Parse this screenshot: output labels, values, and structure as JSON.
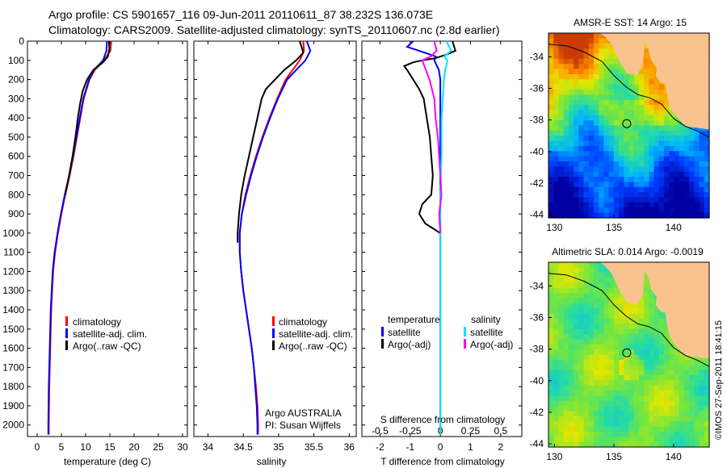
{
  "header": {
    "line1": "Argo profile: CS 5901657_116 09-Jun-2011 20110611_87 38.232S 136.073E",
    "line2": "Climatology: CARS2009. Satellite-adjusted climatology: synTS_20110607.nc (2.8d earlier)"
  },
  "colors": {
    "climatology": "#ff0000",
    "satellite": "#0000ff",
    "argo": "#000000",
    "cyan": "#00e5ff",
    "magenta": "#ff00ff",
    "land": "#f8c38f"
  },
  "chart_data": [
    {
      "type": "line",
      "xlabel": "temperature (deg C)",
      "ylabel": "",
      "xlim": [
        -2,
        31
      ],
      "ylim": [
        2060,
        0
      ],
      "x_ticks": [
        "0",
        "5",
        "10",
        "15",
        "20",
        "25",
        "30"
      ],
      "y_ticks": [
        "0",
        "100",
        "200",
        "300",
        "400",
        "500",
        "600",
        "700",
        "800",
        "900",
        "1000",
        "1100",
        "1200",
        "1300",
        "1400",
        "1500",
        "1600",
        "1700",
        "1800",
        "1900",
        "2000"
      ],
      "legend": [
        "climatology",
        "satellite-adj. clim.",
        "Argo(..raw -QC)"
      ],
      "series": [
        {
          "name": "climatology",
          "depth": [
            0,
            50,
            100,
            150,
            200,
            300,
            400,
            500,
            600,
            700,
            800,
            900,
            1000,
            1100,
            1200,
            1400,
            1600,
            1800,
            2000,
            2050
          ],
          "values": [
            15.3,
            15.1,
            13.8,
            11.9,
            10.8,
            9.6,
            8.9,
            8.2,
            7.5,
            6.7,
            5.8,
            5.0,
            4.3,
            3.7,
            3.3,
            2.9,
            2.7,
            2.5,
            2.4,
            2.4
          ]
        },
        {
          "name": "satellite-adj. clim.",
          "depth": [
            0,
            50,
            100,
            150,
            200,
            300,
            400,
            500,
            600,
            700,
            800,
            900,
            1000,
            1100,
            1200,
            1400,
            1600,
            1800,
            2000,
            2050
          ],
          "values": [
            14.4,
            14.3,
            13.6,
            11.7,
            10.7,
            9.5,
            8.8,
            8.1,
            7.4,
            6.6,
            5.7,
            4.9,
            4.2,
            3.6,
            3.2,
            2.8,
            2.6,
            2.4,
            2.3,
            2.3
          ]
        },
        {
          "name": "Argo(..raw -QC)",
          "depth": [
            0,
            40,
            80,
            110,
            150,
            200,
            260,
            320,
            400,
            500,
            600,
            700,
            800
          ],
          "values": [
            14.8,
            14.9,
            14.6,
            13.6,
            11.6,
            10.3,
            9.4,
            8.9,
            8.4,
            7.9,
            7.3,
            6.6,
            5.8
          ]
        }
      ]
    },
    {
      "type": "line",
      "xlabel": "salinity",
      "ylabel": "",
      "xlim": [
        33.8,
        36.1
      ],
      "ylim": [
        2060,
        0
      ],
      "x_ticks": [
        "34",
        "34.5",
        "35",
        "35.5",
        "36"
      ],
      "legend": [
        "climatology",
        "satellite-adj. clim.",
        "Argo(..raw -QC)"
      ],
      "annotation": [
        "Argo AUSTRALIA",
        "PI: Susan Wijffels"
      ],
      "series": [
        {
          "name": "climatology",
          "depth": [
            0,
            50,
            100,
            150,
            200,
            300,
            400,
            500,
            600,
            700,
            800,
            900,
            1000,
            1100,
            1200,
            1300,
            1400,
            1500,
            1600,
            1700,
            1800,
            1900,
            2000,
            2050
          ],
          "values": [
            35.35,
            35.36,
            35.3,
            35.2,
            35.1,
            34.98,
            34.87,
            34.77,
            34.68,
            34.6,
            34.53,
            34.48,
            34.45,
            34.45,
            34.47,
            34.5,
            34.54,
            34.58,
            34.62,
            34.65,
            34.68,
            34.7,
            34.71,
            34.71
          ]
        },
        {
          "name": "satellite-adj. clim.",
          "depth": [
            0,
            50,
            100,
            150,
            200,
            300,
            400,
            500,
            600,
            700,
            800,
            900,
            1000,
            1100,
            1200,
            1300,
            1400,
            1500,
            1600,
            1700,
            1800,
            1900,
            2000,
            2050
          ],
          "values": [
            35.4,
            35.45,
            35.38,
            35.25,
            35.12,
            34.99,
            34.88,
            34.78,
            34.69,
            34.61,
            34.54,
            34.48,
            34.45,
            34.45,
            34.47,
            34.5,
            34.54,
            34.58,
            34.62,
            34.65,
            34.67,
            34.69,
            34.7,
            34.7
          ]
        },
        {
          "name": "Argo(..raw -QC)",
          "depth": [
            0,
            60,
            100,
            150,
            200,
            250,
            300,
            400,
            500,
            600,
            700,
            800,
            900,
            1000,
            1050
          ],
          "values": [
            35.3,
            35.35,
            35.25,
            35.08,
            34.95,
            34.82,
            34.76,
            34.7,
            34.64,
            34.58,
            34.52,
            34.47,
            34.44,
            34.42,
            34.42
          ]
        }
      ]
    },
    {
      "type": "line",
      "xlabel": "T difference from climatology",
      "x2label": "S difference from climatology",
      "xlim": [
        -2.6,
        2.7
      ],
      "ylim": [
        2060,
        0
      ],
      "x_ticks": [
        "-2",
        "-1",
        "0",
        "1",
        "2"
      ],
      "x2_ticks": [
        "-0.5",
        "-0.25",
        "0",
        "0.25",
        "0.5"
      ],
      "legend_left_title": "temperature",
      "legend_right_title": "salinity",
      "legend": [
        "satellite",
        "Argo(-adj)",
        "satellite",
        "Argo(-adj)"
      ],
      "series": [
        {
          "name": "satellite",
          "depth": [
            0,
            30,
            50,
            80,
            100,
            150,
            200,
            400,
            600,
            800,
            1000,
            1500,
            2000,
            2050
          ],
          "values": [
            -0.9,
            -1.1,
            -0.7,
            -0.15,
            -0.2,
            -0.05,
            0,
            0,
            0,
            0,
            0,
            0,
            0,
            0
          ]
        },
        {
          "name": "Argo(-adj)",
          "depth": [
            0,
            50,
            70,
            90,
            100,
            110,
            130,
            150,
            200,
            250,
            300,
            400,
            500,
            600,
            700,
            800,
            850,
            900,
            950,
            1000,
            1050
          ],
          "values": [
            0.4,
            0.5,
            0.2,
            -0.2,
            -0.6,
            -0.9,
            -1.2,
            -1.1,
            -0.9,
            -0.7,
            -0.55,
            -0.45,
            -0.35,
            -0.3,
            -0.25,
            -0.3,
            -0.6,
            -0.7,
            -0.5,
            0,
            0
          ]
        },
        {
          "name": "satellite",
          "depth": [
            0,
            50,
            80,
            100,
            150,
            200,
            300,
            400,
            500,
            600,
            800,
            1000,
            1500,
            2000,
            2050
          ],
          "values": [
            0.05,
            0.09,
            0.03,
            0.06,
            0.04,
            0.03,
            0.02,
            0.01,
            0.01,
            0.01,
            0,
            0,
            0,
            0,
            0
          ]
        },
        {
          "name": "Argo(-adj)",
          "depth": [
            0,
            50,
            80,
            100,
            150,
            200,
            300,
            400,
            500,
            600,
            700,
            800,
            900,
            1000
          ],
          "values": [
            -0.05,
            -0.03,
            -0.08,
            -0.15,
            -0.12,
            -0.09,
            -0.05,
            -0.04,
            -0.02,
            -0.01,
            0,
            0.01,
            -0.01,
            0
          ]
        }
      ]
    },
    {
      "type": "heatmap",
      "title": "AMSR-E SST: 14 Argo: 15",
      "x_ticks": [
        "130",
        "135",
        "140"
      ],
      "y_ticks": [
        "-34",
        "-36",
        "-38",
        "-40",
        "-42",
        "-44"
      ],
      "xlim": [
        129.5,
        143
      ],
      "ylim": [
        -44.2,
        -32.5
      ],
      "profile_location": [
        136.073,
        -38.232
      ]
    },
    {
      "type": "heatmap",
      "title": "Altimetric SLA: 0.014 Argo: -0.0019",
      "x_ticks": [
        "130",
        "135",
        "140"
      ],
      "y_ticks": [
        "-34",
        "-36",
        "-38",
        "-40",
        "-42",
        "-44"
      ],
      "xlim": [
        129.5,
        143
      ],
      "ylim": [
        -44.2,
        -32.5
      ],
      "profile_location": [
        136.073,
        -38.232
      ]
    }
  ],
  "footer": {
    "imos": "©IMOS 27-Sep-2011 18:41:15"
  }
}
